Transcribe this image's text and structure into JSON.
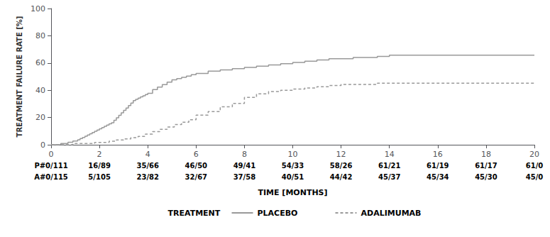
{
  "chart_data": {
    "type": "step",
    "ylabel": "TREATMENT FAILURE RATE [%]",
    "xlabel": "TIME [MONTHS]",
    "xlim": [
      0,
      20
    ],
    "ylim": [
      0,
      100
    ],
    "xticks": [
      0,
      2,
      4,
      6,
      8,
      10,
      12,
      14,
      16,
      18,
      20
    ],
    "yticks": [
      0,
      20,
      40,
      60,
      80,
      100
    ],
    "grid": false,
    "legend": "bottom",
    "legend_title": "TREATMENT",
    "at_risk_x": [
      0,
      2,
      4,
      6,
      8,
      10,
      12,
      14,
      16,
      18,
      20
    ],
    "series": [
      {
        "name": "PLACEBO",
        "color": "#999999",
        "line_style": "solid",
        "x": [
          0,
          0.1,
          0.2,
          0.3,
          0.4,
          0.5,
          0.6,
          0.7,
          0.8,
          0.9,
          1.0,
          1.1,
          1.2,
          1.3,
          1.4,
          1.5,
          1.6,
          1.7,
          1.8,
          1.9,
          2.0,
          2.1,
          2.2,
          2.3,
          2.4,
          2.5,
          2.6,
          2.7,
          2.8,
          2.9,
          3.0,
          3.1,
          3.2,
          3.3,
          3.4,
          3.5,
          3.6,
          3.7,
          3.8,
          3.9,
          4.0,
          4.2,
          4.4,
          4.6,
          4.8,
          5.0,
          5.2,
          5.4,
          5.6,
          5.8,
          6.0,
          6.5,
          7.0,
          7.5,
          8.0,
          8.5,
          9.0,
          9.5,
          10.0,
          10.5,
          11.0,
          11.5,
          12.0,
          12.5,
          13.0,
          13.5,
          14.0,
          16.0,
          18.0,
          20.0
        ],
        "values": [
          0,
          0,
          0,
          0,
          0.9,
          0.9,
          0.9,
          1.8,
          1.8,
          2.7,
          2.7,
          3.6,
          4.5,
          5.4,
          6.3,
          7.2,
          8.1,
          9.0,
          9.9,
          10.8,
          11.7,
          12.6,
          13.5,
          14.4,
          15.3,
          16.2,
          18.0,
          19.8,
          21.6,
          23.4,
          25.2,
          27.0,
          28.8,
          30.6,
          32.4,
          33.3,
          34.2,
          35.1,
          36.0,
          36.9,
          37.8,
          40.5,
          42.3,
          44.1,
          45.9,
          47.7,
          48.6,
          49.5,
          50.4,
          51.4,
          52.3,
          54.1,
          55.0,
          55.9,
          56.8,
          57.7,
          58.6,
          59.5,
          60.4,
          61.3,
          62.2,
          63.1,
          63.1,
          64.0,
          64.0,
          64.9,
          65.8,
          65.8,
          65.8,
          65.8
        ],
        "at_risk": [
          "P#0/111",
          "16/89",
          "35/66",
          "46/50",
          "49/41",
          "54/33",
          "58/26",
          "61/21",
          "61/19",
          "61/17",
          "61/0"
        ]
      },
      {
        "name": "ADALIMUMAB",
        "color": "#999999",
        "line_style": "dashed",
        "x": [
          0,
          0.3,
          0.6,
          0.9,
          1.2,
          1.5,
          1.8,
          2.1,
          2.4,
          2.7,
          3.0,
          3.3,
          3.6,
          3.9,
          4.2,
          4.5,
          4.8,
          5.1,
          5.4,
          5.7,
          6.0,
          6.5,
          7.0,
          7.5,
          8.0,
          8.5,
          9.0,
          9.5,
          10.0,
          10.5,
          11.0,
          11.5,
          12.0,
          12.5,
          13.0,
          13.5,
          14.0,
          16.0,
          18.0,
          20.0
        ],
        "values": [
          0,
          0,
          0,
          0.9,
          0.9,
          0.9,
          1.7,
          1.7,
          2.6,
          3.5,
          4.3,
          5.2,
          6.1,
          7.8,
          9.6,
          11.3,
          13.0,
          14.8,
          16.5,
          18.3,
          21.7,
          24.3,
          27.8,
          30.4,
          34.8,
          37.4,
          39.1,
          40.0,
          40.9,
          41.7,
          42.6,
          43.5,
          44.3,
          44.3,
          44.3,
          45.2,
          45.2,
          45.2,
          45.2,
          45.2
        ],
        "at_risk": [
          "A#0/115",
          "5/105",
          "23/82",
          "32/67",
          "37/58",
          "40/51",
          "44/42",
          "45/37",
          "45/34",
          "45/30",
          "45/0"
        ]
      }
    ]
  }
}
